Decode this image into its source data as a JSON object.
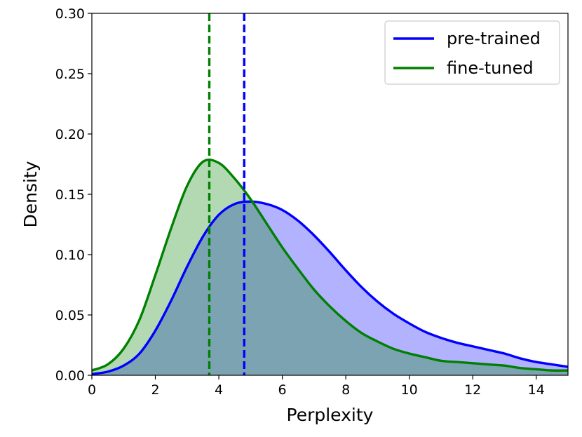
{
  "chart_data": {
    "type": "area",
    "title": "",
    "xlabel": "Perplexity",
    "ylabel": "Density",
    "xlim": [
      0,
      15
    ],
    "ylim": [
      0,
      0.3
    ],
    "xticks": [
      0,
      2,
      4,
      6,
      8,
      10,
      12,
      14
    ],
    "xtick_labels": [
      "0",
      "2",
      "4",
      "6",
      "8",
      "10",
      "12",
      "14"
    ],
    "yticks": [
      0,
      0.05,
      0.1,
      0.15,
      0.2,
      0.25,
      0.3
    ],
    "ytick_labels": [
      "0.00",
      "0.05",
      "0.10",
      "0.15",
      "0.20",
      "0.25",
      "0.30"
    ],
    "grid": false,
    "legend_position": "top-right",
    "series": [
      {
        "name": "pre-trained",
        "color": "#0000ff",
        "fill_color": "#0000ff",
        "mean_line_x": 4.8,
        "x": [
          0,
          0.5,
          1,
          1.5,
          2,
          2.5,
          3,
          3.5,
          4,
          4.5,
          5,
          5.5,
          6,
          6.5,
          7,
          7.5,
          8,
          8.5,
          9,
          9.5,
          10,
          10.5,
          11,
          11.5,
          12,
          12.5,
          13,
          13.5,
          14,
          14.5,
          15
        ],
        "y": [
          0.001,
          0.003,
          0.008,
          0.018,
          0.037,
          0.062,
          0.09,
          0.115,
          0.133,
          0.142,
          0.144,
          0.142,
          0.137,
          0.128,
          0.116,
          0.102,
          0.087,
          0.073,
          0.061,
          0.051,
          0.043,
          0.036,
          0.031,
          0.027,
          0.024,
          0.021,
          0.018,
          0.014,
          0.011,
          0.009,
          0.007
        ]
      },
      {
        "name": "fine-tuned",
        "color": "#008000",
        "fill_color": "#008000",
        "mean_line_x": 3.7,
        "x": [
          0,
          0.5,
          1,
          1.5,
          2,
          2.5,
          3,
          3.5,
          4,
          4.5,
          5,
          5.5,
          6,
          6.5,
          7,
          7.5,
          8,
          8.5,
          9,
          9.5,
          10,
          10.5,
          11,
          11.5,
          12,
          12.5,
          13,
          13.5,
          14,
          14.5,
          15
        ],
        "y": [
          0.004,
          0.009,
          0.022,
          0.046,
          0.083,
          0.122,
          0.157,
          0.177,
          0.176,
          0.163,
          0.146,
          0.126,
          0.106,
          0.088,
          0.071,
          0.057,
          0.045,
          0.035,
          0.028,
          0.022,
          0.018,
          0.015,
          0.012,
          0.011,
          0.01,
          0.009,
          0.008,
          0.006,
          0.005,
          0.004,
          0.004
        ]
      }
    ]
  }
}
